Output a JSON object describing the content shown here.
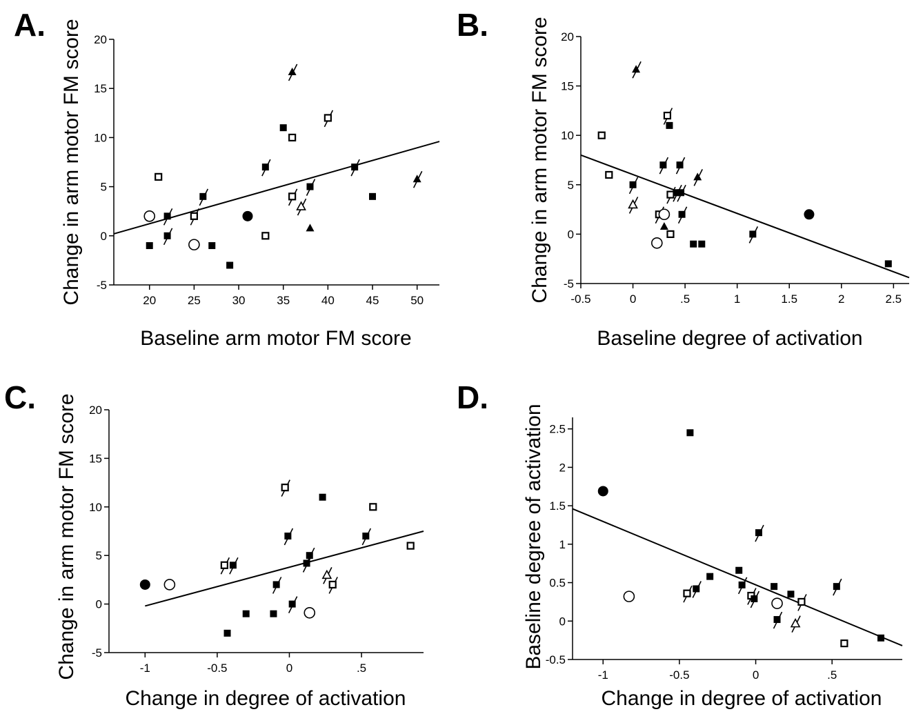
{
  "chart_data": [
    {
      "panel": "A.",
      "type": "scatter",
      "xlabel": "Baseline arm motor FM score",
      "ylabel": "Change in arm motor FM score",
      "xlim": [
        16,
        52.5
      ],
      "ylim": [
        -5,
        20
      ],
      "x_ticks": [
        20,
        25,
        30,
        35,
        40,
        45,
        50
      ],
      "x_tick_labels": [
        "20",
        "25",
        "30",
        "35",
        "40",
        "45",
        "50"
      ],
      "y_ticks": [
        -5,
        0,
        5,
        10,
        15,
        20
      ],
      "y_tick_labels": [
        "-5",
        "0",
        "5",
        "10",
        "15",
        "20"
      ],
      "points": [
        {
          "x": 20,
          "y": 2,
          "marker": "open-circle",
          "slash": false
        },
        {
          "x": 20,
          "y": -1,
          "marker": "filled-square",
          "slash": false
        },
        {
          "x": 21,
          "y": 6,
          "marker": "open-square",
          "slash": false
        },
        {
          "x": 22,
          "y": 2,
          "marker": "filled-square",
          "slash": true
        },
        {
          "x": 22,
          "y": 0,
          "marker": "filled-square",
          "slash": true
        },
        {
          "x": 25,
          "y": -0.9,
          "marker": "open-circle",
          "slash": false
        },
        {
          "x": 25,
          "y": 2,
          "marker": "open-square",
          "slash": true
        },
        {
          "x": 26,
          "y": 4,
          "marker": "filled-square",
          "slash": true
        },
        {
          "x": 27,
          "y": -1,
          "marker": "filled-square",
          "slash": false
        },
        {
          "x": 29,
          "y": -3,
          "marker": "filled-square",
          "slash": false
        },
        {
          "x": 31,
          "y": 2,
          "marker": "filled-circle",
          "slash": false
        },
        {
          "x": 33,
          "y": 0,
          "marker": "open-square",
          "slash": false
        },
        {
          "x": 33,
          "y": 7,
          "marker": "filled-square",
          "slash": true
        },
        {
          "x": 35,
          "y": 11,
          "marker": "filled-square",
          "slash": false
        },
        {
          "x": 36,
          "y": 10,
          "marker": "open-square",
          "slash": false
        },
        {
          "x": 36,
          "y": 4,
          "marker": "open-square",
          "slash": true
        },
        {
          "x": 36,
          "y": 16.7,
          "marker": "filled-triangle",
          "slash": true
        },
        {
          "x": 37,
          "y": 3,
          "marker": "open-triangle",
          "slash": true
        },
        {
          "x": 38,
          "y": 5,
          "marker": "filled-square",
          "slash": true
        },
        {
          "x": 38,
          "y": 0.8,
          "marker": "filled-triangle",
          "slash": false
        },
        {
          "x": 40,
          "y": 12,
          "marker": "open-square",
          "slash": true
        },
        {
          "x": 43,
          "y": 7,
          "marker": "filled-square",
          "slash": true
        },
        {
          "x": 45,
          "y": 4,
          "marker": "filled-square",
          "slash": false
        },
        {
          "x": 50,
          "y": 5.8,
          "marker": "filled-triangle",
          "slash": true
        }
      ],
      "regression_line": {
        "x": [
          16,
          52.5
        ],
        "y": [
          0.2,
          9.6
        ]
      }
    },
    {
      "panel": "B.",
      "type": "scatter",
      "xlabel": "Baseline degree of activation",
      "ylabel": "Change in arm motor FM score",
      "xlim": [
        -0.5,
        2.65
      ],
      "ylim": [
        -5,
        20
      ],
      "x_ticks": [
        -0.5,
        0,
        0.5,
        1,
        1.5,
        2,
        2.5
      ],
      "x_tick_labels": [
        "-0.5",
        "0",
        ".5",
        "1",
        "1.5",
        "2",
        "2.5"
      ],
      "y_ticks": [
        -5,
        0,
        5,
        10,
        15,
        20
      ],
      "y_tick_labels": [
        "-5",
        "0",
        "5",
        "10",
        "15",
        "20"
      ],
      "points": [
        {
          "x": 0.03,
          "y": 16.7,
          "marker": "filled-triangle",
          "slash": true
        },
        {
          "x": -0.3,
          "y": 10,
          "marker": "open-square",
          "slash": false
        },
        {
          "x": 0.33,
          "y": 12,
          "marker": "open-square",
          "slash": true
        },
        {
          "x": 0.35,
          "y": 11,
          "marker": "filled-square",
          "slash": false
        },
        {
          "x": -0.23,
          "y": 6,
          "marker": "open-square",
          "slash": false
        },
        {
          "x": 0,
          "y": 5,
          "marker": "filled-square",
          "slash": true
        },
        {
          "x": 0.29,
          "y": 7,
          "marker": "filled-square",
          "slash": true
        },
        {
          "x": 0.45,
          "y": 7,
          "marker": "filled-square",
          "slash": true
        },
        {
          "x": 0.62,
          "y": 5.8,
          "marker": "filled-triangle",
          "slash": true
        },
        {
          "x": 0.36,
          "y": 4,
          "marker": "open-square",
          "slash": true
        },
        {
          "x": 0.42,
          "y": 4.2,
          "marker": "filled-square",
          "slash": true
        },
        {
          "x": 0.46,
          "y": 4.2,
          "marker": "filled-square",
          "slash": true
        },
        {
          "x": 0,
          "y": 3,
          "marker": "open-triangle",
          "slash": true
        },
        {
          "x": 0.25,
          "y": 2,
          "marker": "open-square",
          "slash": true
        },
        {
          "x": 0.3,
          "y": 2,
          "marker": "open-circle",
          "slash": false
        },
        {
          "x": 0.47,
          "y": 2,
          "marker": "filled-square",
          "slash": true
        },
        {
          "x": 0.3,
          "y": 0.8,
          "marker": "filled-triangle",
          "slash": false
        },
        {
          "x": 0.36,
          "y": 0,
          "marker": "open-square",
          "slash": false
        },
        {
          "x": 0.23,
          "y": -0.9,
          "marker": "open-circle",
          "slash": false
        },
        {
          "x": 0.58,
          "y": -1,
          "marker": "filled-square",
          "slash": false
        },
        {
          "x": 0.66,
          "y": -1,
          "marker": "filled-square",
          "slash": false
        },
        {
          "x": 1.15,
          "y": 0,
          "marker": "filled-square",
          "slash": true
        },
        {
          "x": 1.69,
          "y": 2,
          "marker": "filled-circle",
          "slash": false
        },
        {
          "x": 2.45,
          "y": -3,
          "marker": "filled-square",
          "slash": false
        }
      ],
      "regression_line": {
        "x": [
          -0.5,
          2.65
        ],
        "y": [
          8,
          -4.4
        ]
      }
    },
    {
      "panel": "C.",
      "type": "scatter",
      "xlabel": "Change in degree of activation",
      "ylabel": "Change in arm motor FM score",
      "xlim": [
        -1.25,
        0.93
      ],
      "ylim": [
        -5,
        20
      ],
      "x_ticks": [
        -1,
        -0.5,
        0,
        0.5
      ],
      "x_tick_labels": [
        "-1",
        "-0.5",
        "0",
        ".5"
      ],
      "y_ticks": [
        -5,
        0,
        5,
        10,
        15,
        20
      ],
      "y_tick_labels": [
        "-5",
        "0",
        "5",
        "10",
        "15",
        "20"
      ],
      "points": [
        {
          "x": -1,
          "y": 2,
          "marker": "filled-circle",
          "slash": false
        },
        {
          "x": -0.83,
          "y": 2,
          "marker": "open-circle",
          "slash": false
        },
        {
          "x": -0.45,
          "y": 4,
          "marker": "open-square",
          "slash": true
        },
        {
          "x": -0.39,
          "y": 4,
          "marker": "filled-square",
          "slash": true
        },
        {
          "x": -0.43,
          "y": -3,
          "marker": "filled-square",
          "slash": false
        },
        {
          "x": -0.3,
          "y": -1,
          "marker": "filled-square",
          "slash": false
        },
        {
          "x": -0.11,
          "y": -1,
          "marker": "filled-square",
          "slash": false
        },
        {
          "x": -0.09,
          "y": 2,
          "marker": "filled-square",
          "slash": true
        },
        {
          "x": -0.03,
          "y": 12,
          "marker": "open-square",
          "slash": true
        },
        {
          "x": -0.01,
          "y": 7,
          "marker": "filled-square",
          "slash": true
        },
        {
          "x": 0.02,
          "y": 0,
          "marker": "filled-square",
          "slash": true
        },
        {
          "x": 0.12,
          "y": 4.2,
          "marker": "filled-square",
          "slash": true
        },
        {
          "x": 0.14,
          "y": 5,
          "marker": "filled-square",
          "slash": true
        },
        {
          "x": 0.14,
          "y": -0.9,
          "marker": "open-circle",
          "slash": false
        },
        {
          "x": 0.23,
          "y": 11,
          "marker": "filled-square",
          "slash": false
        },
        {
          "x": 0.26,
          "y": 3,
          "marker": "open-triangle",
          "slash": true
        },
        {
          "x": 0.3,
          "y": 2,
          "marker": "open-square",
          "slash": true
        },
        {
          "x": 0.53,
          "y": 7,
          "marker": "filled-square",
          "slash": true
        },
        {
          "x": 0.58,
          "y": 10,
          "marker": "open-square",
          "slash": false
        },
        {
          "x": 0.84,
          "y": 6,
          "marker": "open-square",
          "slash": false
        }
      ],
      "regression_line": {
        "x": [
          -1,
          0.93
        ],
        "y": [
          -0.2,
          7.5
        ]
      }
    },
    {
      "panel": "D.",
      "type": "scatter",
      "xlabel": "Change in degree of activation",
      "ylabel": "Baseline degree of activation",
      "xlim": [
        -1.2,
        0.96
      ],
      "ylim": [
        -0.5,
        2.65
      ],
      "x_ticks": [
        -1,
        -0.5,
        0,
        0.5
      ],
      "x_tick_labels": [
        "-1",
        "-0.5",
        "0",
        ".5"
      ],
      "y_ticks": [
        -0.5,
        0,
        0.5,
        1,
        1.5,
        2,
        2.5
      ],
      "y_tick_labels": [
        "-0.5",
        "0",
        "0.5",
        "1",
        "1.5",
        "2",
        "2.5"
      ],
      "points": [
        {
          "x": -1,
          "y": 1.69,
          "marker": "filled-circle",
          "slash": false
        },
        {
          "x": -0.83,
          "y": 0.32,
          "marker": "open-circle",
          "slash": false
        },
        {
          "x": -0.43,
          "y": 2.45,
          "marker": "filled-square",
          "slash": false
        },
        {
          "x": -0.45,
          "y": 0.36,
          "marker": "open-square",
          "slash": true
        },
        {
          "x": -0.39,
          "y": 0.42,
          "marker": "filled-square",
          "slash": true
        },
        {
          "x": -0.3,
          "y": 0.58,
          "marker": "filled-square",
          "slash": false
        },
        {
          "x": -0.11,
          "y": 0.66,
          "marker": "filled-square",
          "slash": false
        },
        {
          "x": -0.09,
          "y": 0.47,
          "marker": "filled-square",
          "slash": true
        },
        {
          "x": -0.03,
          "y": 0.33,
          "marker": "open-square",
          "slash": true
        },
        {
          "x": -0.01,
          "y": 0.29,
          "marker": "filled-square",
          "slash": true
        },
        {
          "x": 0.02,
          "y": 1.15,
          "marker": "filled-square",
          "slash": true
        },
        {
          "x": 0.12,
          "y": 0.45,
          "marker": "filled-square",
          "slash": false
        },
        {
          "x": 0.14,
          "y": 0.23,
          "marker": "open-circle",
          "slash": false
        },
        {
          "x": 0.14,
          "y": 0.02,
          "marker": "filled-square",
          "slash": true
        },
        {
          "x": 0.23,
          "y": 0.35,
          "marker": "filled-square",
          "slash": false
        },
        {
          "x": 0.26,
          "y": -0.03,
          "marker": "open-triangle",
          "slash": true
        },
        {
          "x": 0.3,
          "y": 0.25,
          "marker": "open-square",
          "slash": true
        },
        {
          "x": 0.53,
          "y": 0.45,
          "marker": "filled-square",
          "slash": true
        },
        {
          "x": 0.58,
          "y": -0.29,
          "marker": "open-square",
          "slash": false
        },
        {
          "x": 0.82,
          "y": -0.22,
          "marker": "filled-square",
          "slash": false
        }
      ],
      "regression_line": {
        "x": [
          -1.2,
          0.96
        ],
        "y": [
          1.46,
          -0.32
        ]
      }
    }
  ]
}
